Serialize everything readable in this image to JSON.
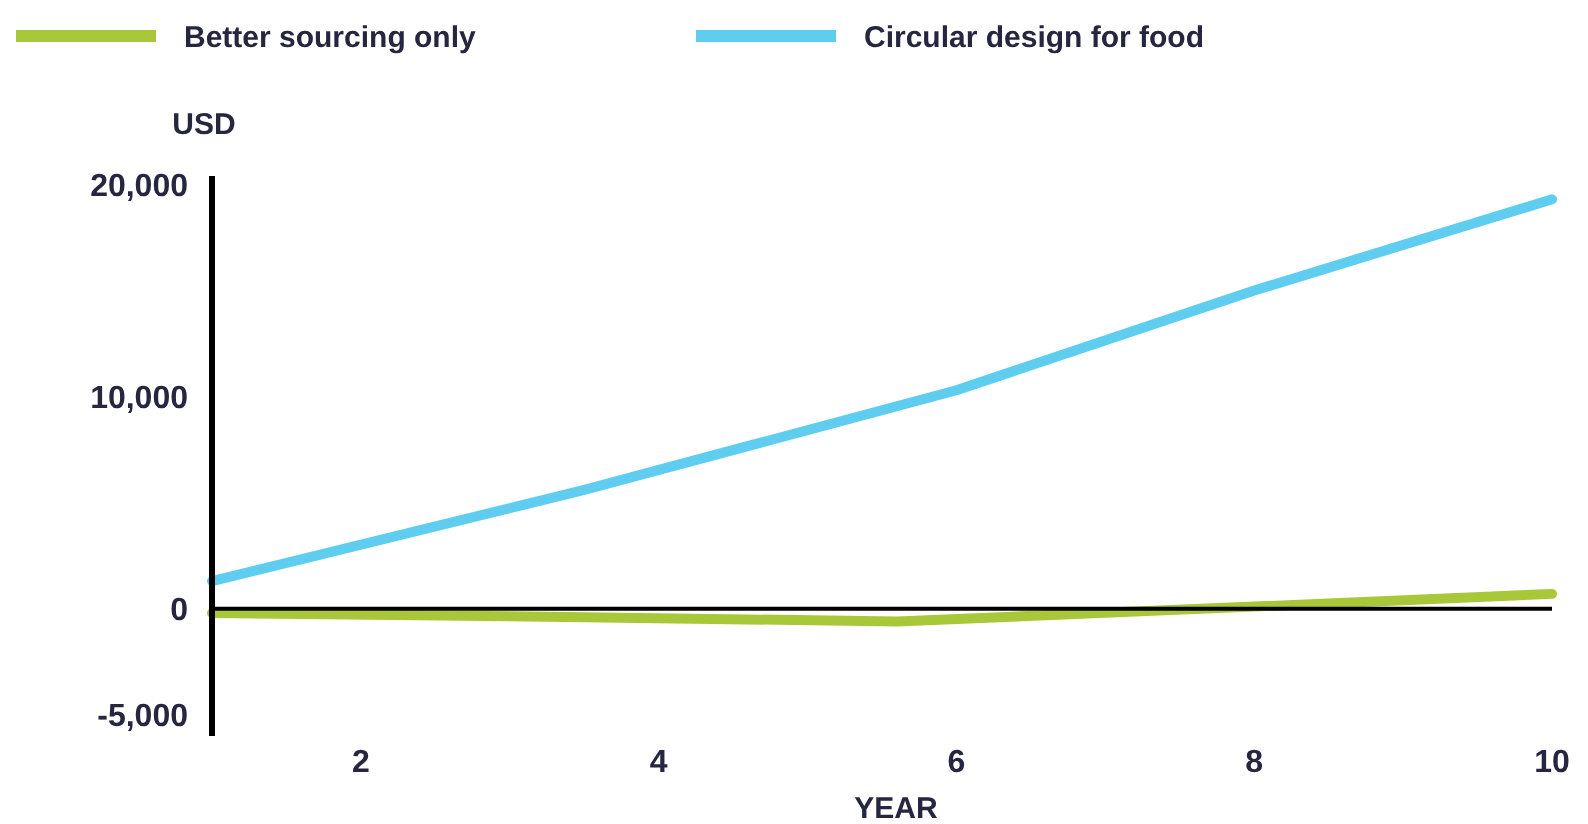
{
  "chart_data": {
    "type": "line",
    "ylabel": "USD",
    "xlabel": "YEAR",
    "legend": "top left",
    "xlim": [
      1,
      10
    ],
    "xticks": [
      2,
      4,
      6,
      8,
      10
    ],
    "ylim": [
      -6000,
      20400
    ],
    "yticks": [
      {
        "value": -5000,
        "label": "-5,000"
      },
      0,
      {
        "value": 10000,
        "label": "10,000"
      },
      {
        "value": 20000,
        "label": "20,000"
      }
    ],
    "ref_lines": [
      {
        "axis": "y",
        "value": 0,
        "color": "#000000"
      }
    ],
    "line_style": "solid",
    "marker": "none",
    "series": [
      {
        "name": "Better sourcing only",
        "color": "#a8c83a",
        "x": [
          1,
          3.5,
          5.6,
          8,
          10
        ],
        "values": [
          -200,
          -400,
          -600,
          100,
          700
        ]
      },
      {
        "name": "Circular design for food",
        "color": "#5fcdf0",
        "x": [
          1,
          3.5,
          6,
          8,
          10
        ],
        "values": [
          1300,
          5600,
          10300,
          15000,
          19300
        ]
      }
    ]
  }
}
